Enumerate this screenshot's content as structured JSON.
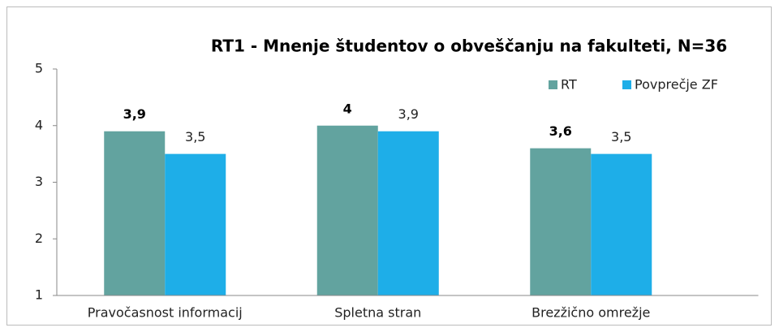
{
  "chart_data": {
    "type": "bar",
    "title": "RT1 - Mnenje študentov o obveščanju na fakulteti, N=36",
    "categories": [
      "Pravočasnost informacij",
      "Spletna stran",
      "Brezžično omrežje"
    ],
    "series": [
      {
        "name": "RT",
        "color": "#62a39f",
        "values": [
          3.9,
          4,
          3.6
        ],
        "value_labels": [
          "3,9",
          "4",
          "3,6"
        ]
      },
      {
        "name": "Povprečje ZF",
        "color": "#1eaee8",
        "values": [
          3.5,
          3.9,
          3.5
        ],
        "value_labels": [
          "3,5",
          "3,9",
          "3,5"
        ]
      }
    ],
    "ylim": [
      1,
      5
    ],
    "yticks": [
      1,
      2,
      3,
      4,
      5
    ],
    "grid": false,
    "legend": "top-right"
  }
}
